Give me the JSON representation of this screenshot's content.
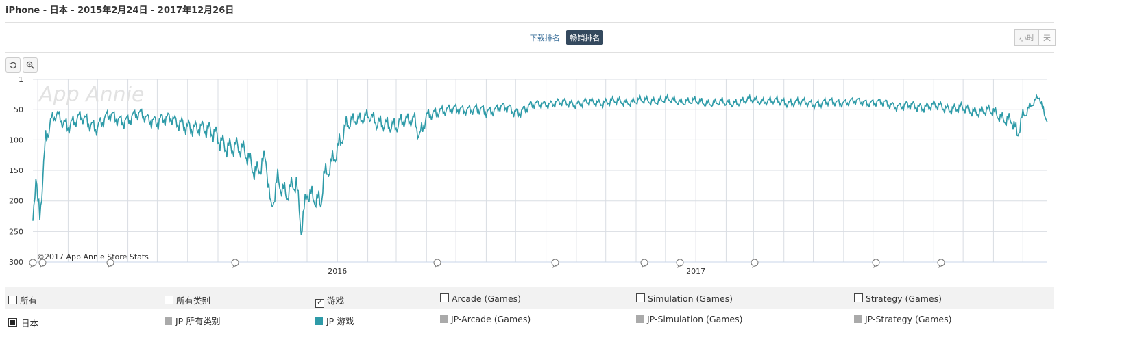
{
  "title": "iPhone - 日本 - 2015年2月24日 - 2017年12月26日",
  "tabs": {
    "download": "下载排名",
    "revenue": "畅销排名"
  },
  "granularity": {
    "hour": "小时",
    "day": "天"
  },
  "tools": {
    "reset_icon": "rotate-left-icon",
    "zoom_icon": "zoom-in-icon"
  },
  "watermark": "App Annie",
  "copyright": "©2017 App Annie Store Stats",
  "colors": {
    "line": "#2e9ba8",
    "grid": "#d9dde3",
    "gray": "#aaaaaa"
  },
  "legend": {
    "checkboxes": [
      {
        "label": "所有",
        "checked": false
      },
      {
        "label": "所有类别",
        "checked": false
      },
      {
        "label": "游戏",
        "checked": true
      },
      {
        "label": "Arcade (Games)",
        "checked": false
      },
      {
        "label": "Simulation (Games)",
        "checked": false
      },
      {
        "label": "Strategy (Games)",
        "checked": false
      }
    ],
    "country": "日本",
    "series": [
      {
        "label": "JP-所有类别",
        "color": "#aaaaaa"
      },
      {
        "label": "JP-游戏",
        "color": "#2e9ba8"
      },
      {
        "label": "JP-Arcade (Games)",
        "color": "#aaaaaa"
      },
      {
        "label": "JP-Simulation (Games)",
        "color": "#aaaaaa"
      },
      {
        "label": "JP-Strategy (Games)",
        "color": "#aaaaaa"
      }
    ]
  },
  "chart_data": {
    "type": "line",
    "x_range": [
      "2015-02-24",
      "2017-12-26"
    ],
    "x_tick_labels": [
      "2016",
      "2017"
    ],
    "x_ticks": [
      "2016-01-01",
      "2017-01-01"
    ],
    "y_tick_labels": [
      "1",
      "50",
      "100",
      "150",
      "200",
      "250",
      "300"
    ],
    "y_reversed": true,
    "ylim": [
      1,
      300
    ],
    "grid": true,
    "series": [
      {
        "name": "JP-游戏",
        "points": [
          [
            "2015-02-24",
            225
          ],
          [
            "2015-02-27",
            155
          ],
          [
            "2015-03-01",
            200
          ],
          [
            "2015-03-03",
            218
          ],
          [
            "2015-03-06",
            160
          ],
          [
            "2015-03-09",
            100
          ],
          [
            "2015-03-14",
            75
          ],
          [
            "2015-03-20",
            60
          ],
          [
            "2015-04-01",
            75
          ],
          [
            "2015-04-15",
            65
          ],
          [
            "2015-05-01",
            78
          ],
          [
            "2015-05-15",
            60
          ],
          [
            "2015-06-01",
            70
          ],
          [
            "2015-06-15",
            55
          ],
          [
            "2015-07-01",
            75
          ],
          [
            "2015-07-15",
            60
          ],
          [
            "2015-08-01",
            85
          ],
          [
            "2015-08-15",
            75
          ],
          [
            "2015-09-01",
            100
          ],
          [
            "2015-09-15",
            110
          ],
          [
            "2015-10-01",
            125
          ],
          [
            "2015-10-10",
            150
          ],
          [
            "2015-10-20",
            135
          ],
          [
            "2015-10-25",
            220
          ],
          [
            "2015-11-01",
            160
          ],
          [
            "2015-11-10",
            190
          ],
          [
            "2015-11-20",
            175
          ],
          [
            "2015-11-25",
            245
          ],
          [
            "2015-12-01",
            180
          ],
          [
            "2015-12-10",
            200
          ],
          [
            "2015-12-15",
            210
          ],
          [
            "2015-12-18",
            165
          ],
          [
            "2015-12-22",
            150
          ],
          [
            "2015-12-28",
            125
          ],
          [
            "2016-01-05",
            100
          ],
          [
            "2016-01-10",
            80
          ],
          [
            "2016-01-20",
            65
          ],
          [
            "2016-02-01",
            60
          ],
          [
            "2016-02-10",
            75
          ],
          [
            "2016-02-20",
            70
          ],
          [
            "2016-03-01",
            80
          ],
          [
            "2016-03-10",
            70
          ],
          [
            "2016-03-20",
            62
          ],
          [
            "2016-03-25",
            95
          ],
          [
            "2016-04-01",
            65
          ],
          [
            "2016-04-15",
            50
          ],
          [
            "2016-05-01",
            52
          ],
          [
            "2016-05-15",
            48
          ],
          [
            "2016-06-01",
            55
          ],
          [
            "2016-06-15",
            45
          ],
          [
            "2016-07-01",
            55
          ],
          [
            "2016-07-15",
            45
          ],
          [
            "2016-08-01",
            40
          ],
          [
            "2016-09-01",
            40
          ],
          [
            "2016-10-01",
            38
          ],
          [
            "2016-11-01",
            37
          ],
          [
            "2016-12-01",
            35
          ],
          [
            "2017-01-01",
            38
          ],
          [
            "2017-02-01",
            40
          ],
          [
            "2017-03-01",
            35
          ],
          [
            "2017-04-01",
            38
          ],
          [
            "2017-05-01",
            40
          ],
          [
            "2017-06-01",
            38
          ],
          [
            "2017-07-01",
            38
          ],
          [
            "2017-08-01",
            45
          ],
          [
            "2017-09-01",
            45
          ],
          [
            "2017-10-01",
            50
          ],
          [
            "2017-11-01",
            55
          ],
          [
            "2017-11-20",
            70
          ],
          [
            "2017-11-25",
            98
          ],
          [
            "2017-12-01",
            60
          ],
          [
            "2017-12-10",
            40
          ],
          [
            "2017-12-18",
            30
          ],
          [
            "2017-12-22",
            60
          ],
          [
            "2017-12-26",
            65
          ]
        ]
      }
    ]
  }
}
